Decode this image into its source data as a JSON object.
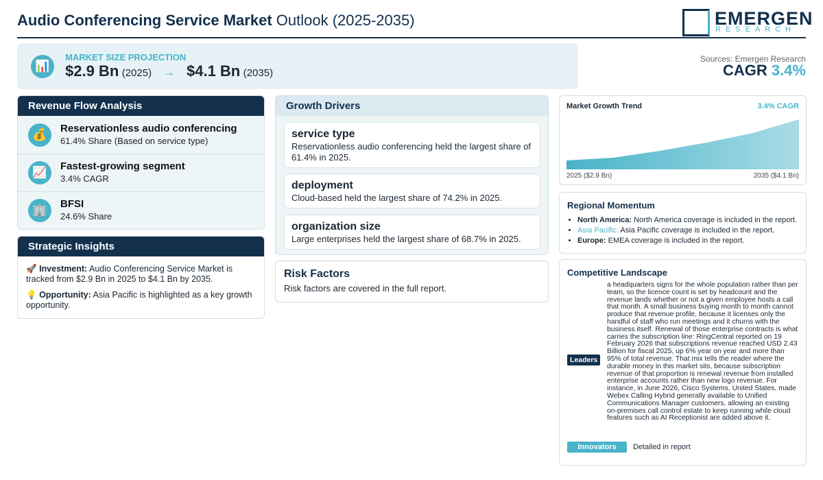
{
  "header": {
    "title_bold": "Audio Conferencing Service Market",
    "title_rest": "Outlook (2025-2035)",
    "logo_main": "EMERGEN",
    "logo_sub": "RESEARCH"
  },
  "projection": {
    "icon": "📊",
    "label": "MARKET SIZE PROJECTION",
    "start_value": "$2.9 Bn",
    "start_year": "(2025)",
    "arrow": "→",
    "end_value": "$4.1 Bn",
    "end_year": "(2035)"
  },
  "sources": {
    "text": "Sources: Emergen Research",
    "cagr_label": "CAGR",
    "cagr_value": "3.4%"
  },
  "revenue_flow": {
    "title": "Revenue Flow Analysis",
    "items": [
      {
        "icon": "💰",
        "title": "Reservationless audio conferencing",
        "subtitle": "61.4% Share (Based on service type)"
      },
      {
        "icon": "📈",
        "title": "Fastest-growing segment",
        "subtitle": "3.4% CAGR"
      },
      {
        "icon": "🏢",
        "title": "BFSI",
        "subtitle": "24.6% Share"
      }
    ]
  },
  "strategic_insights": {
    "title": "Strategic Insights",
    "items": [
      {
        "icon": "🚀",
        "label": "Investment:",
        "text": "Audio Conferencing Service Market is tracked from $2.9 Bn in 2025 to $4.1 Bn by 2035."
      },
      {
        "icon": "💡",
        "label": "Opportunity:",
        "text": "Asia Pacific is highlighted as a key growth opportunity."
      }
    ]
  },
  "growth_drivers": {
    "title": "Growth Drivers",
    "items": [
      {
        "title": "service type",
        "text": "Reservationless audio conferencing held the largest share of 61.4% in 2025."
      },
      {
        "title": "deployment",
        "text": "Cloud-based held the largest share of 74.2% in 2025."
      },
      {
        "title": "organization size",
        "text": "Large enterprises held the largest share of 68.7% in 2025."
      }
    ]
  },
  "risk_factors": {
    "title": "Risk Factors",
    "text": "Risk factors are covered in the full report."
  },
  "market_trend": {
    "title": "Market Growth Trend",
    "cagr": "3.4% CAGR",
    "start_label": "2025 ($2.9 Bn)",
    "end_label": "2035 ($4.1 Bn)"
  },
  "regional": {
    "title": "Regional Momentum",
    "items": [
      {
        "region": "North America:",
        "text": "North America coverage is included in the report."
      },
      {
        "region": "Asia Pacific:",
        "text": "Asia Pacific coverage is included in the report."
      },
      {
        "region": "Europe:",
        "text": "EMEA coverage is included in the report."
      }
    ]
  },
  "competitive": {
    "title": "Competitive Landscape",
    "leaders_label": "Leaders",
    "leaders_text": "a headquarters signs for the whole population rather than per team, so the licence count is set by headcount and the revenue lands whether or not a given employee hosts a call that month. A small business buying month to month cannot produce that revenue profile, because it licenses only the handful of staff who run meetings and it churns with the business itself. Renewal of those enterprise contracts is what carries the subscription line: RingCentral reported on 19 February 2026 that subscriptions revenue reached USD 2.43 Billion for fiscal 2025, up 6% year on year and more than 95% of total revenue. That mix tells the reader where the durable money in this market sits, because subscription revenue of that proportion is renewal revenue from installed enterprise accounts rather than new logo revenue. For instance, in June 2026, Cisco Systems, United States, made Webex Calling Hybrid generally available to Unified Communications Manager customers, allowing an existing on-premises call control estate to keep running while cloud features such as AI Receptionist are added above it.",
    "innovators_label": "Innovators",
    "innovators_text": "Detailed in report"
  }
}
